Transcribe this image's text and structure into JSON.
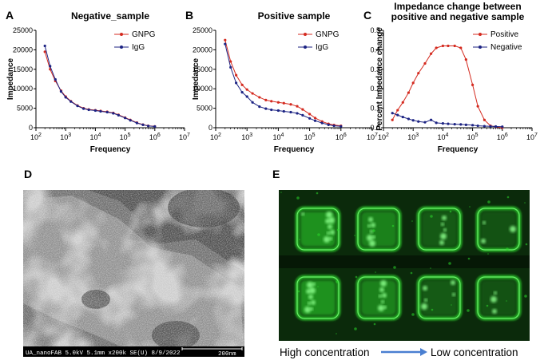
{
  "panels": {
    "a": {
      "letter": "A"
    },
    "b": {
      "letter": "B"
    },
    "c": {
      "letter": "C"
    },
    "d": {
      "letter": "D",
      "sem_caption": "UA_nanoFAB 5.0kV 5.1mm x200k SE(U) 8/9/2022",
      "scale_label": "200nm"
    },
    "e": {
      "letter": "E",
      "caption_left": "High concentration",
      "caption_right": "Low concentration"
    }
  },
  "colors": {
    "red": "#d42a1f",
    "blue": "#1c2383",
    "fluorescence": "#2bd82b"
  },
  "chart_data": [
    {
      "type": "line",
      "title": "Negative_sample",
      "xlabel": "Frequency",
      "ylabel": "Impedance",
      "xscale": "log",
      "xlim": [
        100,
        10000000
      ],
      "ylim": [
        0,
        25000
      ],
      "yticks": [
        0,
        5000,
        10000,
        15000,
        20000,
        25000
      ],
      "legend_position": "top-right",
      "series": [
        {
          "name": "GNPG",
          "color": "#d42a1f",
          "marker": "circle",
          "x": [
            200,
            300,
            450,
            700,
            1000,
            1500,
            2500,
            4000,
            6000,
            10000,
            15000,
            25000,
            40000,
            60000,
            100000,
            150000,
            250000,
            400000,
            600000,
            1000000
          ],
          "y": [
            19500,
            15000,
            12000,
            9500,
            8000,
            6800,
            5700,
            5000,
            4700,
            4500,
            4300,
            4100,
            3800,
            3300,
            2600,
            2000,
            1300,
            800,
            500,
            350
          ]
        },
        {
          "name": "IgG",
          "color": "#1c2383",
          "marker": "circle",
          "x": [
            200,
            300,
            450,
            700,
            1000,
            1500,
            2500,
            4000,
            6000,
            10000,
            15000,
            25000,
            40000,
            60000,
            100000,
            150000,
            250000,
            400000,
            600000,
            1000000
          ],
          "y": [
            21000,
            15800,
            12400,
            9300,
            7800,
            6700,
            5600,
            4900,
            4600,
            4400,
            4200,
            4000,
            3700,
            3200,
            2500,
            1900,
            1200,
            750,
            450,
            300
          ]
        }
      ]
    },
    {
      "type": "line",
      "title": "Positive sample",
      "xlabel": "Frequency",
      "ylabel": "Impedance",
      "xscale": "log",
      "xlim": [
        100,
        10000000
      ],
      "ylim": [
        0,
        25000
      ],
      "yticks": [
        0,
        5000,
        10000,
        15000,
        20000,
        25000
      ],
      "legend_position": "top-right",
      "series": [
        {
          "name": "GNPG",
          "color": "#d42a1f",
          "marker": "circle",
          "x": [
            200,
            300,
            450,
            700,
            1000,
            1500,
            2500,
            4000,
            6000,
            10000,
            15000,
            25000,
            40000,
            60000,
            100000,
            150000,
            250000,
            400000,
            600000,
            1000000
          ],
          "y": [
            22500,
            17000,
            13500,
            11000,
            9800,
            8800,
            7800,
            7100,
            6800,
            6500,
            6300,
            6000,
            5500,
            4700,
            3500,
            2500,
            1600,
            1000,
            700,
            500
          ]
        },
        {
          "name": "IgG",
          "color": "#1c2383",
          "marker": "circle",
          "x": [
            200,
            300,
            450,
            700,
            1000,
            1500,
            2500,
            4000,
            6000,
            10000,
            15000,
            25000,
            40000,
            60000,
            100000,
            150000,
            250000,
            400000,
            600000,
            1000000
          ],
          "y": [
            21500,
            15500,
            11500,
            9100,
            8000,
            6500,
            5400,
            4900,
            4600,
            4400,
            4200,
            4000,
            3700,
            3200,
            2400,
            1800,
            1200,
            750,
            500,
            350
          ]
        }
      ]
    },
    {
      "type": "line",
      "title": "Impedance change between positive and negative sample",
      "title_lines": [
        "Impedance change between",
        "positive and negative sample"
      ],
      "xlabel": "Frequency",
      "ylabel": "Percent Impedance change",
      "xscale": "log",
      "xlim": [
        100,
        10000000
      ],
      "ylim": [
        0,
        0.5
      ],
      "yticks": [
        0.0,
        0.1,
        0.2,
        0.3,
        0.4,
        0.5
      ],
      "legend_position": "top-right",
      "series": [
        {
          "name": "Positive",
          "color": "#d42a1f",
          "marker": "circle",
          "x": [
            200,
            300,
            450,
            700,
            1000,
            1500,
            2500,
            4000,
            6000,
            10000,
            15000,
            25000,
            40000,
            60000,
            100000,
            150000,
            250000,
            400000,
            600000,
            1000000
          ],
          "y": [
            0.04,
            0.09,
            0.13,
            0.18,
            0.23,
            0.28,
            0.33,
            0.38,
            0.41,
            0.42,
            0.42,
            0.42,
            0.41,
            0.35,
            0.22,
            0.11,
            0.04,
            0.01,
            0.005,
            0.0
          ]
        },
        {
          "name": "Negative",
          "color": "#1c2383",
          "marker": "circle",
          "x": [
            200,
            300,
            450,
            700,
            1000,
            1500,
            2500,
            4000,
            6000,
            10000,
            15000,
            25000,
            40000,
            60000,
            100000,
            150000,
            250000,
            400000,
            600000,
            1000000
          ],
          "y": [
            0.075,
            0.065,
            0.055,
            0.045,
            0.038,
            0.032,
            0.028,
            0.04,
            0.025,
            0.022,
            0.02,
            0.018,
            0.017,
            0.015,
            0.013,
            0.01,
            0.008,
            0.007,
            0.006,
            0.005
          ]
        }
      ]
    }
  ]
}
